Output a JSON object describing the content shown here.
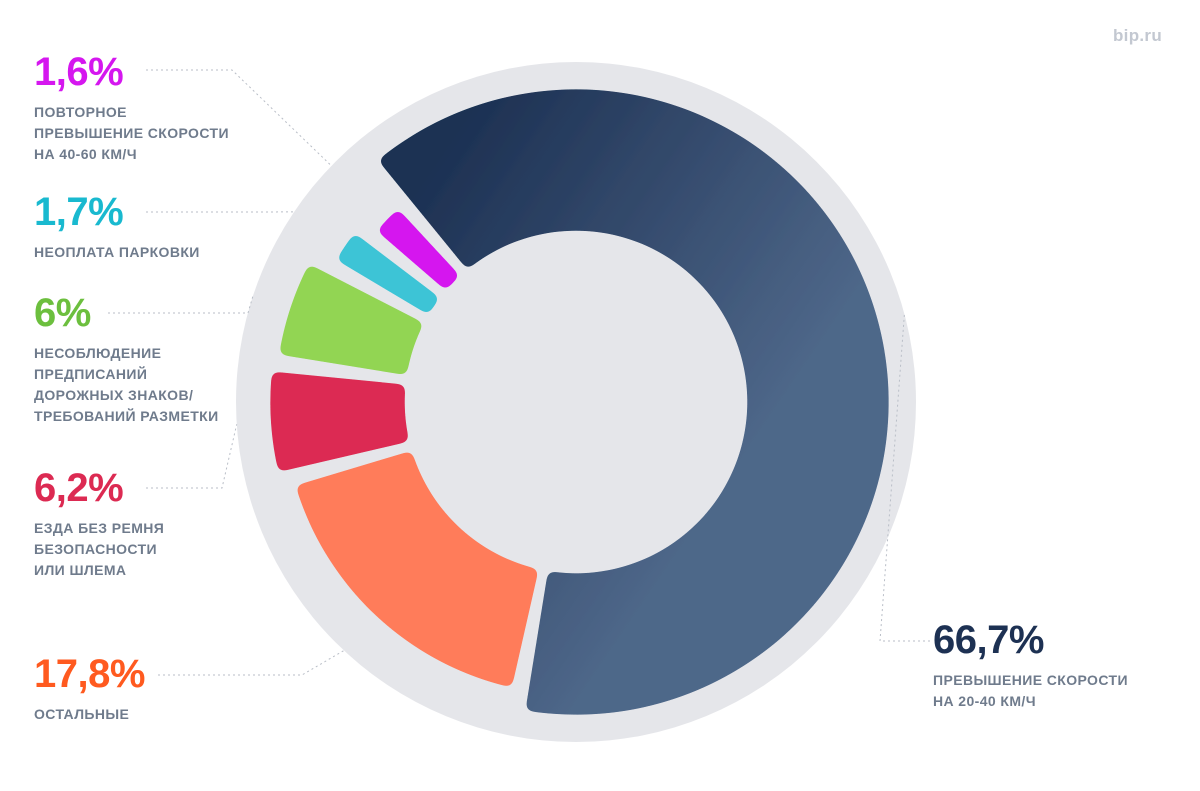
{
  "brand": "bip.ru",
  "chart_data": {
    "type": "pie",
    "variant": "donut",
    "title": "",
    "slices": [
      {
        "key": "speed2040",
        "value": 66.7,
        "label": "66,7%",
        "desc": "ПРЕВЫШЕНИЕ СКОРОСТИ\nНА 20-40 КМ/Ч",
        "color": "#2c4468",
        "color2": "#4c6588"
      },
      {
        "key": "other",
        "value": 17.8,
        "label": "17,8%",
        "desc": "ОСТАЛЬНЫЕ",
        "color": "#ff7b5a",
        "color2": "#ff7b5a"
      },
      {
        "key": "belt",
        "value": 6.2,
        "label": "6,2%",
        "desc": "ЕЗДА БЕЗ РЕМНЯ\nБЕЗОПАСНОСТИ\nИЛИ ШЛЕМА",
        "color": "#dc2a52",
        "color2": "#dc2a52"
      },
      {
        "key": "signs",
        "value": 6,
        "label": "6%",
        "desc": "НЕСОБЛЮДЕНИЕ\nПРЕДПИСАНИЙ\nДОРОЖНЫХ ЗНАКОВ/\nТРЕБОВАНИЙ РАЗМЕТКИ",
        "color": "#92d553",
        "color2": "#a6dc6a"
      },
      {
        "key": "parking",
        "value": 1.7,
        "label": "1,7%",
        "desc": "НЕОПЛАТА ПАРКОВКИ",
        "color": "#3cc4d6",
        "color2": "#3cc4d6"
      },
      {
        "key": "speed4060",
        "value": 1.6,
        "label": "1,6%",
        "desc": "ПОВТОРНОЕ\nПРЕВЫШЕНИЕ СКОРОСТИ\nНА 40-60 КМ/Ч",
        "color": "#d517ef",
        "color2": "#d517ef"
      }
    ],
    "label_colors": {
      "speed2040": "#1d3153",
      "other": "#ff5a1f",
      "belt": "#dc2a52",
      "signs": "#6cbf3e",
      "parking": "#19b9cf",
      "speed4060": "#d517ef"
    },
    "ring_color": "#e5e6ea"
  }
}
